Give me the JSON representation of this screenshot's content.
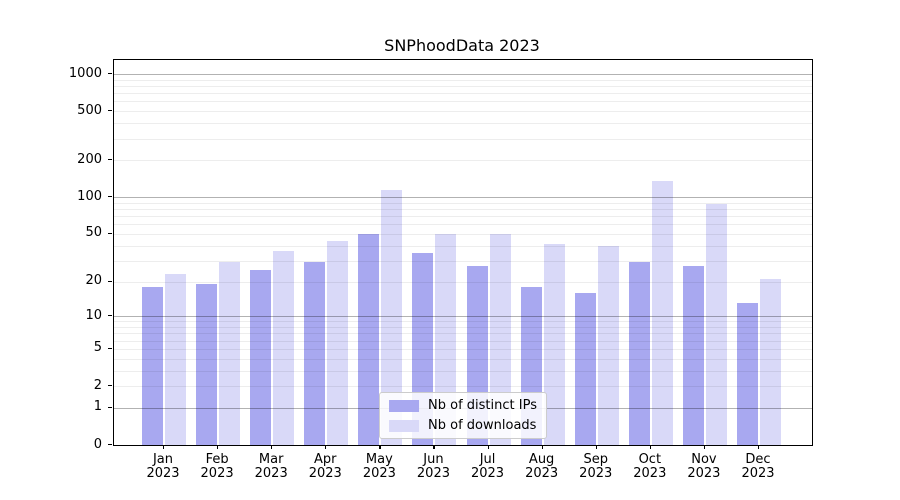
{
  "title": "SNPhoodData 2023",
  "chart_data": {
    "type": "bar",
    "title": "SNPhoodData 2023",
    "categories": [
      "Jan 2023",
      "Feb 2023",
      "Mar 2023",
      "Apr 2023",
      "May 2023",
      "Jun 2023",
      "Jul 2023",
      "Aug 2023",
      "Sep 2023",
      "Oct 2023",
      "Nov 2023",
      "Dec 2023"
    ],
    "x_tick_months": [
      "Jan",
      "Feb",
      "Mar",
      "Apr",
      "May",
      "Jun",
      "Jul",
      "Aug",
      "Sep",
      "Oct",
      "Nov",
      "Dec"
    ],
    "x_tick_year": "2023",
    "series": [
      {
        "name": "Nb of distinct IPs",
        "color": "#a8a8f0",
        "values": [
          18,
          19,
          25,
          29,
          50,
          35,
          27,
          18,
          16,
          29,
          27,
          13
        ]
      },
      {
        "name": "Nb of downloads",
        "color": "#d9d9f8",
        "values": [
          23,
          29,
          36,
          44,
          115,
          50,
          50,
          41,
          40,
          135,
          88,
          21
        ]
      }
    ],
    "y_scale": "log1p",
    "y_ticks": [
      0,
      1,
      2,
      5,
      10,
      20,
      50,
      100,
      200,
      500,
      1000
    ],
    "y_major_gridlines": [
      1,
      10,
      100,
      1000
    ],
    "ylim": [
      0,
      1300
    ],
    "xlabel": "",
    "ylabel": "",
    "grid": "on",
    "legend_position": "lower center",
    "colors": {
      "bar_dark": "#a8a8f0",
      "bar_light": "#d9d9f8",
      "axis": "#000000",
      "grid_major": "#b3b3b3",
      "grid_minor": "#ededed",
      "background": "#ffffff"
    }
  }
}
